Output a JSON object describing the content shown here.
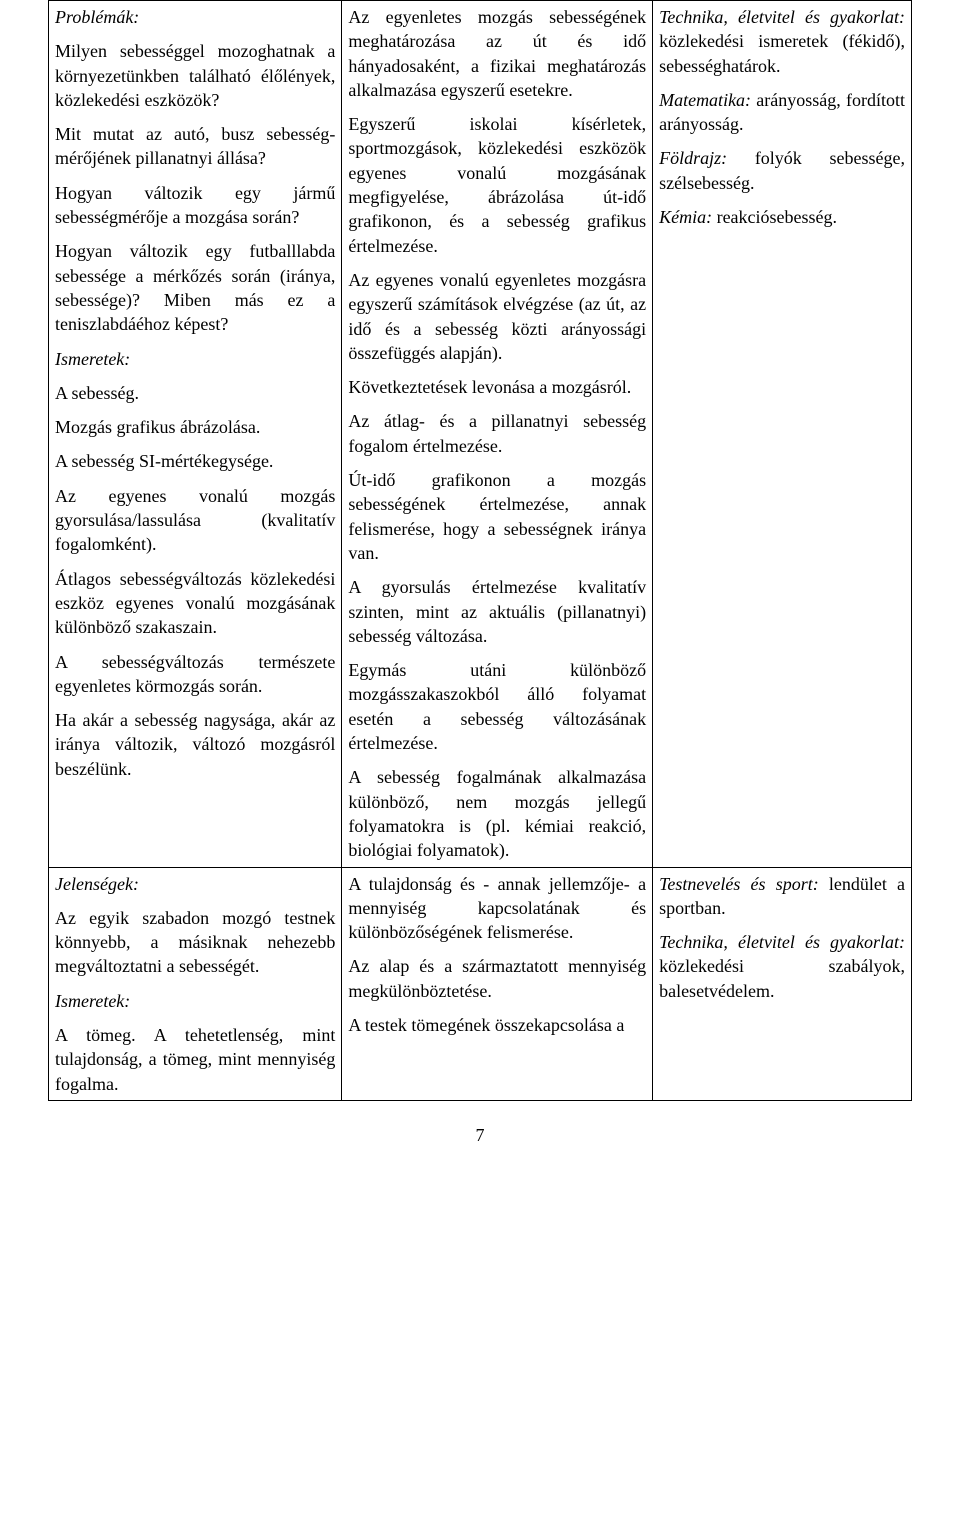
{
  "row1": {
    "col1": {
      "p1_label": "Problémák:",
      "p2": "Milyen sebességgel mozoghatnak a környezetünkben található élőlények, közlekedési eszközök?",
      "p3": "Mit mutat az autó, busz sebesség­mérőjének pillanatnyi állása?",
      "p4": "Hogyan változik egy jármű sebességmérője a mozgása során?",
      "p5": "Hogyan változik egy futball­labda sebessége a mérkőzés során (iránya, sebessége)? Miben más ez a teniszlabdáéhoz képest?",
      "p6_label": "Ismeretek:",
      "p7": "A sebesség.",
      "p8": "Mozgás grafikus ábrázolása.",
      "p9": "A sebesség SI-mértékegysége.",
      "p10": "Az egyenes vonalú mozgás gyorsulása/lassulása (kvalitatív fogalomként).",
      "p11": "Átlagos sebességváltozás közlekedési eszköz egyenes vonalú mozgásának különböző szakaszain.",
      "p12": "A sebességváltozás természete egyenletes körmozgás során.",
      "p13": "Ha akár a sebesség nagysága, akár az iránya változik, változó mozgásról beszélünk."
    },
    "col2": {
      "p1": "Az egyenletes mozgás sebes­ségének meghatározása az út és idő hányadosaként, a fizikai meghatározás alkalmazása egyszerű esetekre.",
      "p2": "Egyszerű iskolai kísérletek, sportmozgások, közlekedési eszközök egyenes vonalú mozgásának megfigyelése, ábrázolása út-idő grafikonon, és a sebesség grafikus értelmezése.",
      "p3": "Az egyenes vonalú egyenletes mozgásra egyszerű számítások elvégzése (az út, az idő és a sebesség közti arányossági összefüggés alapján).",
      "p4": "Következtetések levonása a mozgásról.",
      "p5": "Az átlag- és a pillanatnyi sebesség fogalom értelmezése.",
      "p6": "Út-idő grafikonon a mozgás sebességének értelmezése, annak felismerése, hogy a sebességnek iránya van.",
      "p7": "A gyorsulás értelmezése kvalitatív szinten, mint az aktuális (pillanatnyi) sebesség változása.",
      "p8": "Egymás utáni különböző mozgásszakaszokból álló folyamat esetén a sebesség változásának értelmezése.",
      "p9": "A sebesség fogalmának alkalmazása különböző, nem mozgás jellegű folyamatokra is (pl. kémiai reakció, biológiai folyamatok)."
    },
    "col3": {
      "p1_italic": "Technika, életvitel és gyakorlat:",
      "p1_rest": " közlekedési ismeretek (fékidő), sebességhatárok.",
      "p2_italic": "Matematika:",
      "p2_rest": " arányosság, fordított arányosság.",
      "p3_italic": "Földrajz:",
      "p3_rest": " folyók sebessége, szélsebesség.",
      "p4_italic": "Kémia:",
      "p4_rest": " reakciósebesség."
    }
  },
  "row2": {
    "col1": {
      "p1_label": "Jelenségek:",
      "p2": "Az egyik szabadon mozgó testnek könnyebb, a másiknak nehezebb megváltoztatni a sebességét.",
      "p3_label": "Ismeretek:",
      "p4": "A tömeg. A tehetetlenség, mint tulajdonság, a tömeg, mint mennyiség fogalma."
    },
    "col2": {
      "p1": "A tulajdonság és - annak jellemzője- a mennyiség kapcsolatának és különbözőségének felismerése.",
      "p2": "Az alap és a származtatott mennyiség megkülönböztetése.",
      "p3": "A testek tömegének összekapcsolása a"
    },
    "col3": {
      "p1_italic": "Testnevelés és sport:",
      "p1_rest": " lendület a sportban.",
      "p2_italic": "Technika, életvitel és gyakorlat:",
      "p2_rest": " közlekedési szabályok, balesetvédelem."
    }
  },
  "page_number": "7"
}
